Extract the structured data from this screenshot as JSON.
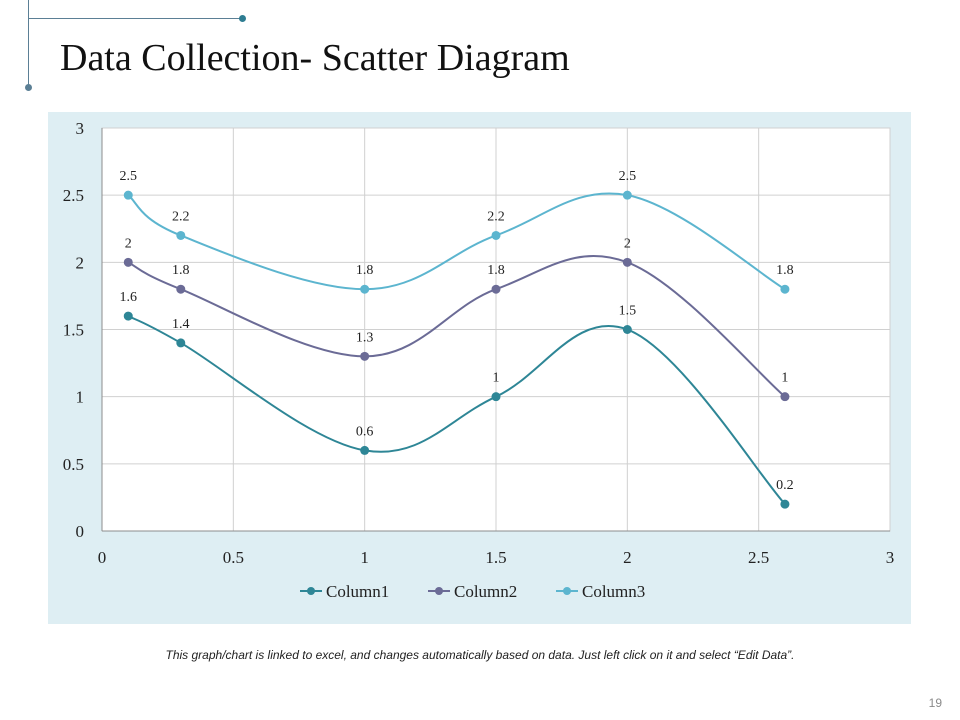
{
  "slide": {
    "title": "Data Collection- Scatter Diagram",
    "footnote": "This graph/chart is linked to excel, and changes automatically based on data. Just left click on it and select “Edit Data”.",
    "page_number": "19"
  },
  "colors": {
    "chart_bg": "#deeef3",
    "grid": "#d0d0d0",
    "axis": "#8c8c8c",
    "column1": "#2e8696",
    "column2": "#6b6b96",
    "column3": "#5cb5cf"
  },
  "chart_data": {
    "type": "scatter",
    "title": "",
    "xlabel": "",
    "ylabel": "",
    "xlim": [
      0,
      3
    ],
    "ylim": [
      0,
      3
    ],
    "xticks": [
      0,
      0.5,
      1,
      1.5,
      2,
      2.5,
      3
    ],
    "yticks": [
      0,
      0.5,
      1,
      1.5,
      2,
      2.5,
      3
    ],
    "grid": true,
    "smooth_lines": true,
    "legend_position": "bottom",
    "series": [
      {
        "name": "Column1",
        "x": [
          0.1,
          0.3,
          1,
          1.5,
          2,
          2.6
        ],
        "y": [
          1.6,
          1.4,
          0.6,
          1,
          1.5,
          0.2
        ]
      },
      {
        "name": "Column2",
        "x": [
          0.1,
          0.3,
          1,
          1.5,
          2,
          2.6
        ],
        "y": [
          2,
          1.8,
          1.3,
          1.8,
          2,
          1
        ]
      },
      {
        "name": "Column3",
        "x": [
          0.1,
          0.3,
          1,
          1.5,
          2,
          2.6
        ],
        "y": [
          2.5,
          2.2,
          1.8,
          2.2,
          2.5,
          1.8
        ]
      }
    ]
  }
}
